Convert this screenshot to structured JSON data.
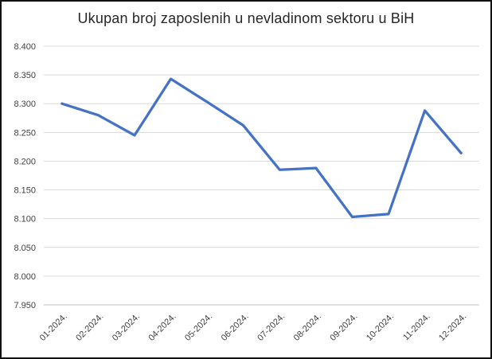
{
  "chart_data": {
    "type": "line",
    "title": "Ukupan broj zaposlenih u nevladinom sektoru u BiH",
    "categories": [
      "01-2024.",
      "02-2024.",
      "03-2024.",
      "04-2024.",
      "05-2024.",
      "06-2024.",
      "07-2024.",
      "08-2024.",
      "09-2024.",
      "10-2024.",
      "11-2024.",
      "12-2024."
    ],
    "values": [
      8300,
      8280,
      8245,
      8343,
      8303,
      8262,
      8185,
      8188,
      8103,
      8108,
      8288,
      8214
    ],
    "ylim": [
      7950,
      8400
    ],
    "y_ticks": [
      7950,
      8000,
      8050,
      8100,
      8150,
      8200,
      8250,
      8300,
      8350,
      8400
    ],
    "y_tick_labels": [
      "7.950",
      "8.000",
      "8.050",
      "8.100",
      "8.150",
      "8.200",
      "8.250",
      "8.300",
      "8.350",
      "8.400"
    ],
    "xlabel": "",
    "ylabel": "",
    "grid": true,
    "legend_position": "none",
    "colors": {
      "line": "#4472C4",
      "gridline": "#D9D9D9",
      "axis_line": "#BFBFBF",
      "tick_label": "#404040",
      "title": "#262626",
      "background": "#FFFFFF",
      "frame_border": "#111111"
    }
  }
}
